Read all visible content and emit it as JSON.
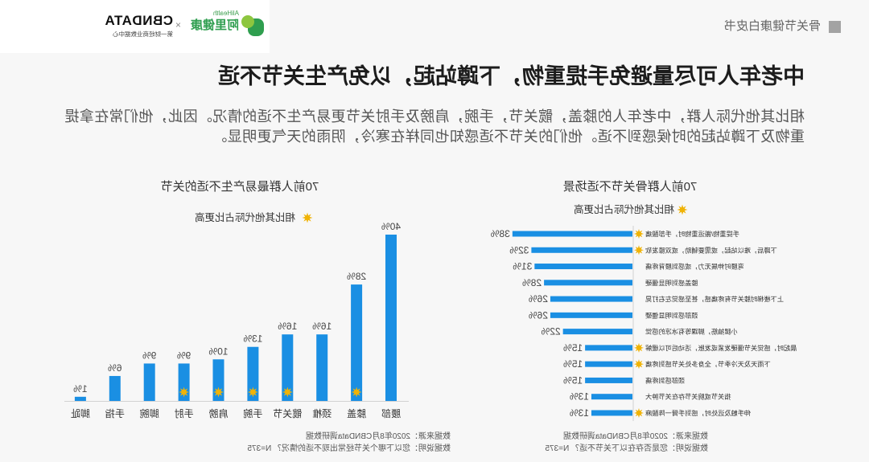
{
  "header": {
    "report_name": "骨关节健康白皮书",
    "logos": {
      "alihealth_en": "AliHealth",
      "alihealth_cn": "阿里健康",
      "separator": "×",
      "cbndata": "CBNDATA",
      "cbndata_sub": "第一财经商业数据中心"
    }
  },
  "headline": "中老年人可尽量避免手提重物，下蹲站起，以免产生关节不适",
  "intro": {
    "lines": [
      "相比其他代际人群，中老年人的膝盖，髋关节，手腕，肩膀及手肘关节更易产生不适的情况。因此，他们常在拿提",
      "重物及下蹲站起的时候感到不适。他们的关节不适感知也同样在寒冷，阴雨的天气更明显。"
    ]
  },
  "icons": {
    "report_marker": "square-icon",
    "highlight_marker": "star-icon",
    "brand_logo": "alihealth-icon"
  },
  "colors": {
    "bar": "#1a8fe3",
    "star": "#f0b306",
    "report_square": "#a3a3a3",
    "brand_green": "#2f9e4f",
    "brand_light_green": "#8dc63f"
  },
  "chart_data": [
    {
      "type": "bar",
      "orientation": "horizontal",
      "title": "70前人群骨关节不适场景",
      "legend": "相比其他代际占比更高",
      "categories": [
        "手提重物/搬运重物时，手部酸痛",
        "下蹲后，难以站起，或需要辅助，或双膝发软",
        "弯腰时伸展无力，或感到腰背疼痛",
        "膝盖感到明显僵硬",
        "上下楼梯时膝关节有疼痛感，甚至感觉左右打晃",
        "颈部感到明显僵硬",
        "小腿抽筋，脚踝等有冰凉的感觉",
        "晨起时，感觉关节僵硬发紧或发胀，活动后可以缓解",
        "下雨天及天冷季节，全身多处关节感到疼痛",
        "颈部感到疼痛",
        "指关节或腕关节存在关节肿大",
        "伸手触及远处时，感到手臂一阵酸麻"
      ],
      "values": [
        38,
        32,
        31,
        28,
        26,
        26,
        22,
        15,
        15,
        15,
        13,
        13
      ],
      "value_labels": [
        "38%",
        "32%",
        "31%",
        "28%",
        "26%",
        "26%",
        "22%",
        "15%",
        "15%",
        "15%",
        "13%",
        "13%"
      ],
      "highlighted": [
        true,
        true,
        false,
        false,
        false,
        false,
        false,
        true,
        true,
        false,
        false,
        true
      ],
      "xlim": [
        0,
        40
      ],
      "grid": false,
      "source": "数据来源：2020年8月CBNData调研数据",
      "note": "数据说明：您是否存在以下关节不适？ N=375"
    },
    {
      "type": "bar",
      "orientation": "vertical",
      "title": "70前人群最易产生不适的关节",
      "legend": "相比其他代际占比更高",
      "categories": [
        "腰部",
        "膝盖",
        "颈椎",
        "髋关节",
        "手腕",
        "肩膀",
        "手肘",
        "脚腕",
        "手指",
        "脚趾"
      ],
      "values": [
        40,
        28,
        16,
        16,
        13,
        10,
        9,
        9,
        6,
        1
      ],
      "value_labels": [
        "40%",
        "28%",
        "16%",
        "16%",
        "13%",
        "10%",
        "9%",
        "9%",
        "6%",
        "1%"
      ],
      "highlighted": [
        false,
        true,
        false,
        true,
        true,
        true,
        true,
        false,
        false,
        false
      ],
      "ylim": [
        0,
        40
      ],
      "grid": false,
      "source": "数据来源：2020年8月CBNData调研数据",
      "note": "数据说明：您以下哪个关节经常出现不适的情况？ N=375"
    }
  ]
}
